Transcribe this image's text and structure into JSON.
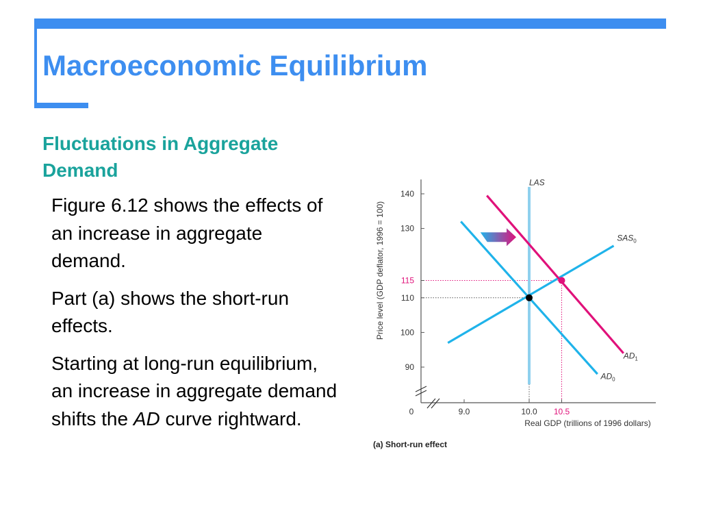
{
  "slide": {
    "title": "Macroeconomic Equilibrium",
    "subtitle": "Fluctuations in Aggregate Demand",
    "paragraphs": [
      "Figure 6.12 shows the effects of an increase in aggregate demand.",
      "Part (a) shows the short-run effects.",
      [
        "Starting at long-run equilibrium, an increase in aggregate demand shifts the ",
        "AD",
        " curve rightward."
      ]
    ]
  },
  "colors": {
    "accent": "#3d8ef0",
    "subtitle": "#1aa39c",
    "curve_blue": "#1fb3ea",
    "curve_magenta": "#e0117a",
    "las": "#8fd0ee"
  },
  "chart_data": {
    "type": "line",
    "caption": "(a) Short-run effect",
    "xlabel": "Real GDP (trillions of 1996 dollars)",
    "ylabel": "Price level (GDP deflator, 1996 = 100)",
    "xlim": [
      9.0,
      11.3
    ],
    "ylim": [
      85,
      140
    ],
    "origin_label": "0",
    "x_ticks": [
      {
        "value": 9.0,
        "label": "9.0",
        "color": "#333333"
      },
      {
        "value": 10.0,
        "label": "10.0",
        "color": "#333333"
      },
      {
        "value": 10.5,
        "label": "10.5",
        "color": "#e0117a"
      }
    ],
    "y_ticks": [
      {
        "value": 90,
        "label": "90",
        "color": "#333333"
      },
      {
        "value": 100,
        "label": "100",
        "color": "#333333"
      },
      {
        "value": 110,
        "label": "110",
        "color": "#333333"
      },
      {
        "value": 115,
        "label": "115",
        "color": "#e0117a"
      },
      {
        "value": 130,
        "label": "130",
        "color": "#333333"
      },
      {
        "value": 140,
        "label": "140",
        "color": "#333333"
      }
    ],
    "series": [
      {
        "name": "LAS",
        "sub": "",
        "label_point": [
          10.0,
          142.5
        ],
        "color": "#8fd0ee",
        "points": [
          [
            10.0,
            85
          ],
          [
            10.0,
            142
          ]
        ]
      },
      {
        "name": "SAS",
        "sub": "0",
        "label_point": [
          11.35,
          126.5
        ],
        "color": "#1fb3ea",
        "points": [
          [
            8.75,
            97
          ],
          [
            11.3,
            125
          ]
        ]
      },
      {
        "name": "AD",
        "sub": "0",
        "label_point": [
          11.1,
          86.5
        ],
        "color": "#1fb3ea",
        "points": [
          [
            8.95,
            132
          ],
          [
            11.05,
            88
          ]
        ]
      },
      {
        "name": "AD",
        "sub": "1",
        "label_point": [
          11.45,
          92.5
        ],
        "color": "#e0117a",
        "points": [
          [
            9.35,
            139.5
          ],
          [
            11.45,
            94
          ]
        ]
      }
    ],
    "equilibria": [
      {
        "x": 10.0,
        "y": 110,
        "color": "#000000",
        "guide_color": "#555555"
      },
      {
        "x": 10.5,
        "y": 115,
        "color": "#e0117a",
        "guide_color": "#e0117a"
      }
    ],
    "shift_arrow": {
      "from": [
        9.25,
        127.5
      ],
      "to": [
        9.8,
        127.5
      ],
      "direction": "right"
    }
  }
}
